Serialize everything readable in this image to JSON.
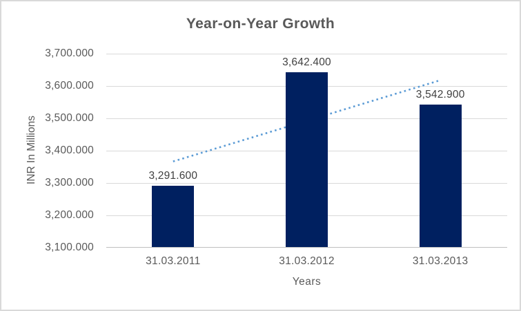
{
  "chart_data": {
    "type": "bar",
    "title": "Year-on-Year Growth",
    "xlabel": "Years",
    "ylabel": "INR In Millions",
    "categories": [
      "31.03.2011",
      "31.03.2012",
      "31.03.2013"
    ],
    "values": [
      3291.6,
      3642.4,
      3542.9
    ],
    "data_labels": [
      "3,291.600",
      "3,642.400",
      "3,542.900"
    ],
    "ylim": [
      3100,
      3700
    ],
    "ytick_step": 100,
    "ytick_labels": [
      "3,100.000",
      "3,200.000",
      "3,300.000",
      "3,400.000",
      "3,500.000",
      "3,600.000",
      "3,700.000"
    ],
    "grid": true,
    "legend": "none",
    "trendline": {
      "type": "linear",
      "style": "dotted"
    },
    "colors": {
      "bar": "#002060",
      "trendline": "#5b9bd5",
      "title_text": "#595959",
      "axis_text": "#595959",
      "data_label_text": "#404040",
      "gridline": "#d9d9d9",
      "axis_line": "#bfbfbf",
      "chart_border": "#d9d9d9"
    }
  }
}
